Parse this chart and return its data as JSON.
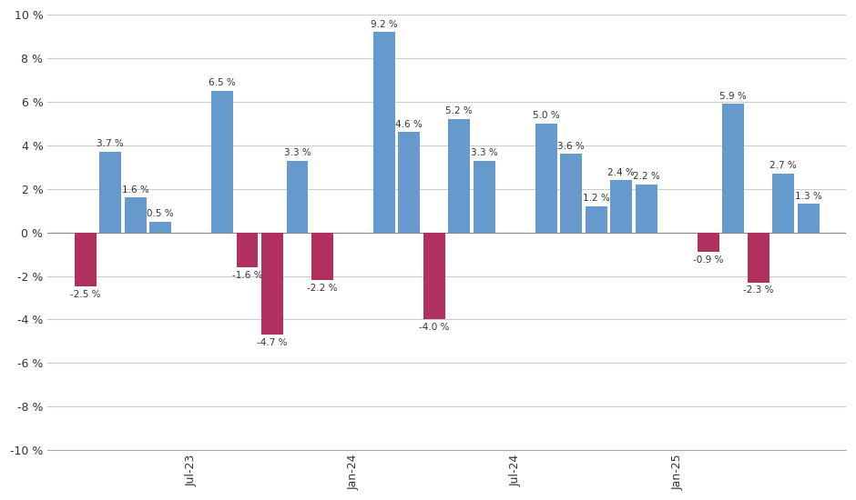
{
  "values": [
    -2.5,
    3.7,
    1.6,
    0.5,
    6.5,
    -1.6,
    -4.7,
    3.3,
    -2.2,
    9.2,
    4.6,
    -4.0,
    5.2,
    3.3,
    5.0,
    3.6,
    1.2,
    2.4,
    2.2,
    -0.9,
    5.9,
    -2.3,
    2.7,
    1.3
  ],
  "xtick_labels": [
    "Jul-23",
    "Jan-24",
    "Jul-24",
    "Jan-25"
  ],
  "ylim": [
    -10,
    10
  ],
  "yticks": [
    -10,
    -8,
    -6,
    -4,
    -2,
    0,
    2,
    4,
    6,
    8,
    10
  ],
  "blue_color": "#6699CC",
  "red_color": "#B03060",
  "bar_width": 0.62,
  "bg_color": "#FFFFFF",
  "grid_color": "#CCCCCC",
  "label_fontsize": 7.5,
  "tick_fontsize": 9
}
